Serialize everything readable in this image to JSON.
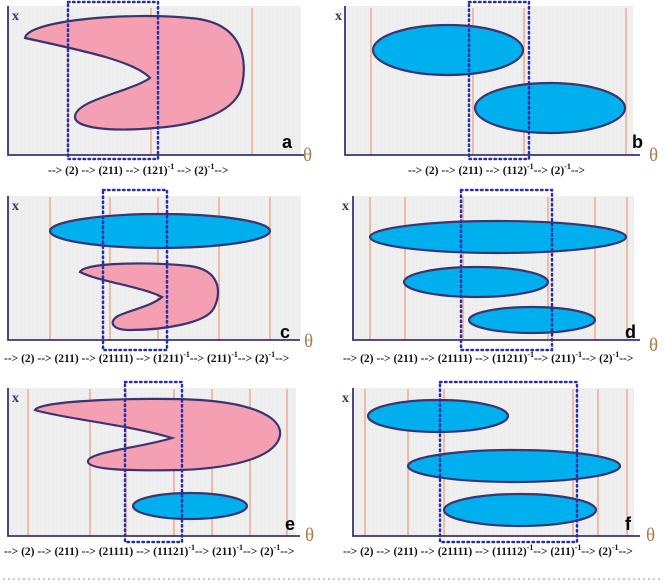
{
  "panels": [
    {
      "letter": "a",
      "x_label": "x",
      "theta_label": "θ",
      "sequence": [
        {
          "t": "--> (2) --> (211) --> (121)"
        },
        {
          "t": "-1",
          "sup": true
        },
        {
          "t": " --> (2)"
        },
        {
          "t": "-1",
          "sup": true
        },
        {
          "t": "-->"
        }
      ]
    },
    {
      "letter": "b",
      "x_label": "x",
      "theta_label": "θ",
      "sequence": [
        {
          "t": "--> (2) --> (211) --> (112)"
        },
        {
          "t": "-1",
          "sup": true
        },
        {
          "t": "--> (2)"
        },
        {
          "t": "-1",
          "sup": true
        },
        {
          "t": "-->"
        }
      ]
    },
    {
      "letter": "c",
      "x_label": "x",
      "theta_label": "θ",
      "sequence": [
        {
          "t": "--> (2) --> (211) --> (21111) --> (1211)"
        },
        {
          "t": "-1",
          "sup": true
        },
        {
          "t": "--> (211)"
        },
        {
          "t": "-1",
          "sup": true
        },
        {
          "t": "--> (2)"
        },
        {
          "t": "-1",
          "sup": true
        },
        {
          "t": "-->"
        }
      ]
    },
    {
      "letter": "d",
      "x_label": "x",
      "theta_label": "θ",
      "sequence": [
        {
          "t": "--> (2) --> (211) --> (21111) --> (11211)"
        },
        {
          "t": "-1",
          "sup": true
        },
        {
          "t": "--> (211)"
        },
        {
          "t": "-1",
          "sup": true
        },
        {
          "t": "--> (2)"
        },
        {
          "t": "-1",
          "sup": true
        },
        {
          "t": "-->"
        }
      ]
    },
    {
      "letter": "e",
      "x_label": "x",
      "theta_label": "θ",
      "sequence": [
        {
          "t": "--> (2) --> (211) --> (21111) --> (11121)"
        },
        {
          "t": "-1",
          "sup": true
        },
        {
          "t": "--> (211)"
        },
        {
          "t": "-1",
          "sup": true
        },
        {
          "t": "--> (2)"
        },
        {
          "t": "-1",
          "sup": true
        },
        {
          "t": "-->"
        }
      ]
    },
    {
      "letter": "f",
      "x_label": "x",
      "theta_label": "θ",
      "sequence": [
        {
          "t": "--> (2) --> (211) --> (21111) --> (11112)"
        },
        {
          "t": "-1",
          "sup": true
        },
        {
          "t": "--> (211)"
        },
        {
          "t": "-1",
          "sup": true
        },
        {
          "t": "--> (2)"
        },
        {
          "t": "-1",
          "sup": true
        },
        {
          "t": "-->"
        }
      ]
    }
  ],
  "colors": {
    "panel_bg": "#efefef",
    "axis": "#3a3470",
    "pink_fill": "#f4a0b2",
    "blue_fill": "#00b0ee",
    "shape_stroke": "#3a3470",
    "orange_line": "#ee9f7e",
    "dotted_box": "#2a2fa8",
    "theta_color": "#a87d50"
  }
}
